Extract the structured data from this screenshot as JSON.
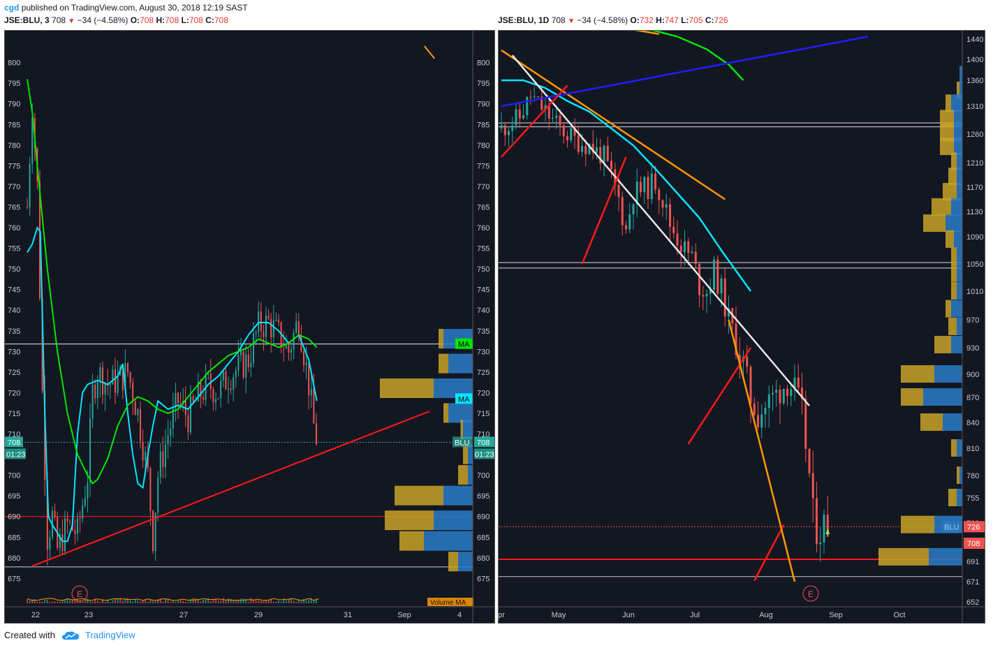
{
  "header": {
    "user": "cgd",
    "published": "published on TradingView.com, August 30, 2018 12:19 SAST"
  },
  "footer": {
    "created": "Created with",
    "brand": "TradingView"
  },
  "colors": {
    "bg": "#131722",
    "up": "#26a69a",
    "down": "#ef5350",
    "cyan": "#00e5ff",
    "green": "#00e600",
    "orange": "#ff9800",
    "blue": "#1e1eff",
    "white": "#e8e8e8",
    "red": "#ff1a1a",
    "vpGold": "#c9a227",
    "vpBlue": "#2a7dc9"
  },
  "chart_data": [
    {
      "type": "candlestick",
      "symbol": "JSE:BLU, 3",
      "last": "708",
      "change": "−34 (−4.58%)",
      "ohlc": {
        "O": "708",
        "H": "708",
        "L": "708",
        "C": "708"
      },
      "ylim": [
        671,
        804
      ],
      "yticks": [
        "800",
        "795",
        "790",
        "785",
        "780",
        "775",
        "770",
        "765",
        "760",
        "755",
        "750",
        "745",
        "740",
        "735",
        "730",
        "725",
        "720",
        "715",
        "710",
        "705",
        "700",
        "695",
        "690",
        "685",
        "680",
        "675"
      ],
      "xticks": [
        "22",
        "23",
        "27",
        "29",
        "31",
        "Sep",
        "4"
      ],
      "price_label": "708",
      "countdown": "01:23",
      "ma_labels": [
        "MA",
        "MA"
      ],
      "symbol_tag": "BLU",
      "event_marker": "E",
      "volume_label": "Volume MA",
      "hlines": [
        731.8,
        690,
        708
      ],
      "close_path": [
        [
          0,
          765
        ],
        [
          1,
          790
        ],
        [
          2,
          770
        ],
        [
          3,
          720
        ],
        [
          4,
          685
        ],
        [
          5,
          690
        ],
        [
          6,
          682
        ],
        [
          8,
          688
        ],
        [
          10,
          686
        ],
        [
          12,
          700
        ],
        [
          13,
          720
        ],
        [
          14,
          725
        ],
        [
          16,
          722
        ],
        [
          18,
          723
        ],
        [
          20,
          725
        ],
        [
          22,
          715
        ],
        [
          24,
          700
        ],
        [
          25,
          685
        ],
        [
          26,
          700
        ],
        [
          28,
          710
        ],
        [
          30,
          718
        ],
        [
          32,
          714
        ],
        [
          34,
          719
        ],
        [
          36,
          722
        ],
        [
          38,
          720
        ],
        [
          40,
          724
        ],
        [
          42,
          726
        ],
        [
          44,
          728
        ],
        [
          46,
          736
        ],
        [
          48,
          737
        ],
        [
          50,
          734
        ],
        [
          52,
          730
        ],
        [
          54,
          738
        ],
        [
          55,
          730
        ],
        [
          56,
          722
        ],
        [
          57,
          712
        ],
        [
          58,
          706
        ]
      ],
      "series": [
        {
          "name": "MA",
          "color": "cyan",
          "points": [
            [
              0,
              754
            ],
            [
              1,
              756
            ],
            [
              2,
              760
            ],
            [
              2.6,
              759
            ],
            [
              3.5,
              715
            ],
            [
              4.2,
              690
            ],
            [
              5,
              688
            ],
            [
              6,
              686
            ],
            [
              7,
              684
            ],
            [
              8,
              684
            ],
            [
              9,
              688
            ],
            [
              10,
              710
            ],
            [
              11,
              720
            ],
            [
              12,
              722
            ],
            [
              14,
              723
            ],
            [
              16,
              722
            ],
            [
              18,
              724
            ],
            [
              19,
              727
            ],
            [
              20,
              715
            ],
            [
              21,
              705
            ],
            [
              22,
              698
            ],
            [
              23,
              697
            ],
            [
              24,
              705
            ],
            [
              25,
              712
            ],
            [
              26,
              718
            ],
            [
              28,
              716
            ],
            [
              30,
              717
            ],
            [
              32,
              716
            ],
            [
              34,
              719
            ],
            [
              36,
              722
            ],
            [
              38,
              724
            ],
            [
              40,
              727
            ],
            [
              42,
              730
            ],
            [
              44,
              734
            ],
            [
              46,
              737
            ],
            [
              48,
              737
            ],
            [
              50,
              735
            ],
            [
              52,
              732
            ],
            [
              54,
              734
            ],
            [
              56,
              728
            ],
            [
              57.6,
              718
            ]
          ]
        },
        {
          "name": "MA",
          "color": "green",
          "points": [
            [
              0,
              796
            ],
            [
              1,
              788
            ],
            [
              2,
              775
            ],
            [
              4,
              750
            ],
            [
              6,
              730
            ],
            [
              8,
              715
            ],
            [
              10,
              705
            ],
            [
              12,
              700
            ],
            [
              13,
              698
            ],
            [
              14,
              699
            ],
            [
              16,
              704
            ],
            [
              18,
              712
            ],
            [
              20,
              717
            ],
            [
              22,
              719
            ],
            [
              24,
              718
            ],
            [
              26,
              716
            ],
            [
              28,
              715
            ],
            [
              30,
              716
            ],
            [
              32,
              719
            ],
            [
              34,
              722
            ],
            [
              36,
              725
            ],
            [
              38,
              727
            ],
            [
              40,
              729
            ],
            [
              42,
              730
            ],
            [
              44,
              731
            ],
            [
              46,
              733
            ],
            [
              48,
              732
            ],
            [
              50,
              731
            ],
            [
              52,
              732
            ],
            [
              54,
              734
            ],
            [
              56,
              733
            ],
            [
              57.6,
              731
            ]
          ]
        }
      ],
      "trendlines": [
        {
          "color": "red",
          "from": [
            1,
            678
          ],
          "to": [
            80,
            715.5
          ]
        },
        {
          "color": "orange",
          "from": [
            79,
            804
          ],
          "to": [
            81,
            801
          ]
        }
      ],
      "volume_profile": [
        {
          "price": 733,
          "gold": 0.01,
          "blue": 0.06
        },
        {
          "price": 727,
          "gold": 0.02,
          "blue": 0.05
        },
        {
          "price": 721,
          "gold": 0.11,
          "blue": 0.08
        },
        {
          "price": 715,
          "gold": 0.01,
          "blue": 0.05
        },
        {
          "price": 711,
          "gold": 0.005,
          "blue": 0.02
        },
        {
          "price": 705,
          "gold": 0.01,
          "blue": 0.01
        },
        {
          "price": 700,
          "gold": 0.02,
          "blue": 0.01
        },
        {
          "price": 695,
          "gold": 0.1,
          "blue": 0.06
        },
        {
          "price": 689,
          "gold": 0.1,
          "blue": 0.08
        },
        {
          "price": 684,
          "gold": 0.05,
          "blue": 0.1
        },
        {
          "price": 679,
          "gold": 0.02,
          "blue": 0.03
        }
      ]
    },
    {
      "type": "candlestick",
      "symbol": "JSE:BLU, 1D",
      "last": "708",
      "change": "−34 (−4.58%)",
      "ohlc": {
        "O": "732",
        "H": "747",
        "L": "705",
        "C": "726"
      },
      "yticks": [
        "1440",
        "1400",
        "1360",
        "1310",
        "1260",
        "1210",
        "1170",
        "1130",
        "1090",
        "1050",
        "1010",
        "970",
        "930",
        "900",
        "870",
        "840",
        "810",
        "780",
        "755",
        "730",
        "708",
        "691",
        "671",
        "652"
      ],
      "xticks": [
        "pr",
        "May",
        "Jun",
        "Jul",
        "Aug",
        "Sep",
        "Oct"
      ],
      "price_labels": [
        "726",
        "708"
      ],
      "symbol_tag": "BLU",
      "event_marker": "E",
      "close_path": [
        [
          0,
          1270
        ],
        [
          5,
          1290
        ],
        [
          8,
          1330
        ],
        [
          12,
          1300
        ],
        [
          16,
          1270
        ],
        [
          20,
          1250
        ],
        [
          24,
          1240
        ],
        [
          28,
          1220
        ],
        [
          32,
          1150
        ],
        [
          34,
          1100
        ],
        [
          36,
          1160
        ],
        [
          40,
          1170
        ],
        [
          42,
          1180
        ],
        [
          44,
          1150
        ],
        [
          46,
          1110
        ],
        [
          48,
          1090
        ],
        [
          50,
          1070
        ],
        [
          52,
          1060
        ],
        [
          54,
          1020
        ],
        [
          56,
          1010
        ],
        [
          58,
          1040
        ],
        [
          60,
          1010
        ],
        [
          62,
          970
        ],
        [
          64,
          940
        ],
        [
          66,
          910
        ],
        [
          68,
          870
        ],
        [
          70,
          850
        ],
        [
          72,
          860
        ],
        [
          74,
          870
        ],
        [
          76,
          880
        ],
        [
          78,
          890
        ],
        [
          80,
          880
        ],
        [
          82,
          850
        ],
        [
          84,
          780
        ],
        [
          85,
          735
        ],
        [
          86,
          725
        ],
        [
          87,
          722
        ],
        [
          88,
          728
        ],
        [
          89,
          726
        ]
      ],
      "series": [
        {
          "name": "MA",
          "color": "cyan",
          "points": [
            [
              0,
              1360
            ],
            [
              6,
              1360
            ],
            [
              12,
              1345
            ],
            [
              18,
              1320
            ],
            [
              24,
              1300
            ],
            [
              30,
              1270
            ],
            [
              36,
              1240
            ],
            [
              42,
              1200
            ],
            [
              48,
              1160
            ],
            [
              54,
              1120
            ],
            [
              60,
              1070
            ],
            [
              64,
              1040
            ],
            [
              68,
              1010
            ]
          ]
        },
        {
          "name": "MA",
          "color": "green",
          "points": [
            [
              33,
              1470
            ],
            [
              40,
              1460
            ],
            [
              48,
              1445
            ],
            [
              56,
              1420
            ],
            [
              62,
              1390
            ],
            [
              66,
              1360
            ]
          ]
        }
      ],
      "trendlines": [
        {
          "color": "orange",
          "from": [
            0,
            1418
          ],
          "to": [
            61,
            1150
          ]
        },
        {
          "color": "orange",
          "from": [
            27,
            1470
          ],
          "to": [
            43,
            1450
          ]
        },
        {
          "color": "white",
          "from": [
            3,
            1408
          ],
          "to": [
            84,
            860
          ]
        },
        {
          "color": "blue",
          "from": [
            0,
            1310
          ],
          "to": [
            100,
            1445
          ]
        },
        {
          "color": "red",
          "from": [
            0,
            1220
          ],
          "to": [
            18,
            1350
          ]
        },
        {
          "color": "red",
          "from": [
            22,
            1050
          ],
          "to": [
            34,
            1220
          ]
        },
        {
          "color": "red",
          "from": [
            51,
            815
          ],
          "to": [
            68,
            930
          ]
        },
        {
          "color": "red",
          "from": [
            69,
            672
          ],
          "to": [
            77,
            728
          ]
        },
        {
          "color": "orange",
          "from": [
            62,
            970
          ],
          "to": [
            80,
            671
          ]
        }
      ],
      "volume_profile": [
        {
          "price": 1370,
          "gold": 0.0,
          "blue": 0.01
        },
        {
          "price": 1340,
          "gold": 0.01,
          "blue": 0.01
        },
        {
          "price": 1315,
          "gold": 0.02,
          "blue": 0.04
        },
        {
          "price": 1287,
          "gold": 0.05,
          "blue": 0.03
        },
        {
          "price": 1262,
          "gold": 0.05,
          "blue": 0.03
        },
        {
          "price": 1238,
          "gold": 0.05,
          "blue": 0.03
        },
        {
          "price": 1212,
          "gold": 0.02,
          "blue": 0.02
        },
        {
          "price": 1187,
          "gold": 0.03,
          "blue": 0.02
        },
        {
          "price": 1162,
          "gold": 0.05,
          "blue": 0.02
        },
        {
          "price": 1137,
          "gold": 0.07,
          "blue": 0.04
        },
        {
          "price": 1111,
          "gold": 0.08,
          "blue": 0.06
        },
        {
          "price": 1086,
          "gold": 0.03,
          "blue": 0.03
        },
        {
          "price": 1061,
          "gold": 0.02,
          "blue": 0.02
        },
        {
          "price": 1036,
          "gold": 0.02,
          "blue": 0.02
        },
        {
          "price": 1010,
          "gold": 0.02,
          "blue": 0.02
        },
        {
          "price": 985,
          "gold": 0.02,
          "blue": 0.04
        },
        {
          "price": 960,
          "gold": 0.03,
          "blue": 0.02
        },
        {
          "price": 934,
          "gold": 0.06,
          "blue": 0.04
        },
        {
          "price": 900,
          "gold": 0.12,
          "blue": 0.1
        },
        {
          "price": 870,
          "gold": 0.08,
          "blue": 0.14
        },
        {
          "price": 840,
          "gold": 0.08,
          "blue": 0.07
        },
        {
          "price": 810,
          "gold": 0.02,
          "blue": 0.02
        },
        {
          "price": 780,
          "gold": 0.01,
          "blue": 0.01
        },
        {
          "price": 755,
          "gold": 0.03,
          "blue": 0.02
        },
        {
          "price": 728,
          "gold": 0.12,
          "blue": 0.1
        },
        {
          "price": 695,
          "gold": 0.18,
          "blue": 0.12
        }
      ]
    }
  ]
}
